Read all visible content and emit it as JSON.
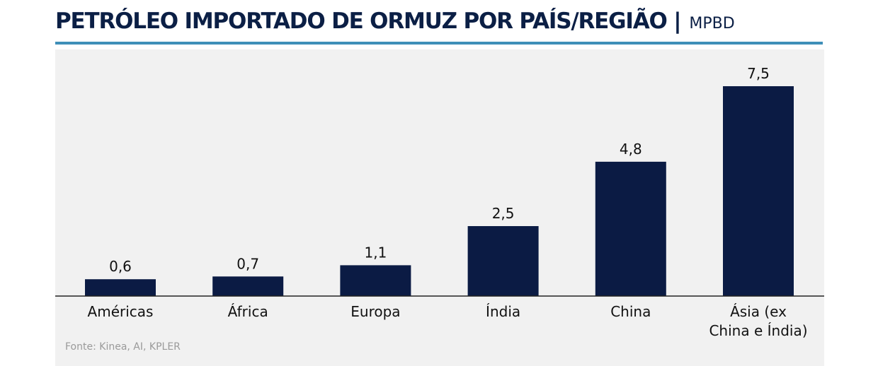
{
  "header": {
    "title": "PETRÓLEO IMPORTADO DE ORMUZ POR PAÍS/REGIÃO |",
    "unit": "MPBD"
  },
  "footer": {
    "source": "Fonte: Kinea, AI, KPLER"
  },
  "colors": {
    "bar": "#0b1b44",
    "title": "#0b1f45",
    "rule": "#3f8fb8",
    "panel": "#f1f1f1",
    "axis": "#222222"
  },
  "chart_data": {
    "type": "bar",
    "categories": [
      [
        "Américas"
      ],
      [
        "África"
      ],
      [
        "Europa"
      ],
      [
        "Índia"
      ],
      [
        "China"
      ],
      [
        "Ásia (ex",
        "China e Índia)"
      ]
    ],
    "values": [
      0.6,
      0.7,
      1.1,
      2.5,
      4.8,
      7.5
    ],
    "value_labels": [
      "0,6",
      "0,7",
      "1,1",
      "2,5",
      "4,8",
      "7,5"
    ],
    "ylim": [
      0,
      7.5
    ],
    "grid": false,
    "legend": "none"
  }
}
